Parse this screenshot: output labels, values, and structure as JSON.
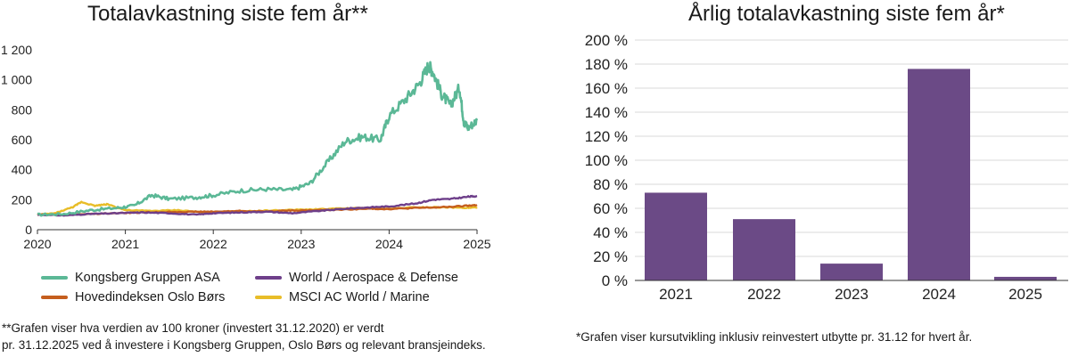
{
  "left_chart": {
    "title": "Totalavkastning siste fem år**",
    "y_ticks": [
      "0",
      "200",
      "400",
      "600",
      "800",
      "1 000",
      "1 200"
    ],
    "x_ticks": [
      "2020",
      "2021",
      "2022",
      "2023",
      "2024",
      "2025"
    ],
    "legend": [
      {
        "label": "Kongsberg Gruppen ASA",
        "color": "#5bb896"
      },
      {
        "label": "World / Aerospace & Defense",
        "color": "#6e3f8a"
      },
      {
        "label": "Hovedindeksen Oslo Børs",
        "color": "#c55e1e"
      },
      {
        "label": "MSCI AC World / Marine",
        "color": "#e8bd28"
      }
    ],
    "note_line1": "**Grafen viser hva verdien av 100 kroner (investert 31.12.2020) er verdt",
    "note_line2": "pr. 31.12.2025 ved å investere i Kongsberg Gruppen, Oslo Børs og relevant bransjeindeks."
  },
  "right_chart": {
    "title": "Årlig totalavkastning siste fem år*",
    "y_ticks": [
      "0 %",
      "20 %",
      "40 %",
      "60 %",
      "80 %",
      "100 %",
      "120 %",
      "140 %",
      "160 %",
      "180 %",
      "200 %"
    ],
    "note": "*Grafen viser kursutvikling inklusiv reinvestert utbytte pr. 31.12 for hvert år."
  },
  "chart_data": [
    {
      "type": "line",
      "title": "Totalavkastning siste fem år**",
      "xlabel": "",
      "ylabel": "",
      "xlim": [
        2020,
        2025
      ],
      "ylim": [
        0,
        1200
      ],
      "grid": false,
      "legend_position": "bottom",
      "series": [
        {
          "name": "Kongsberg Gruppen ASA",
          "color": "#5bb896",
          "x": [
            2020,
            2020.3,
            2020.6,
            2020.9,
            2021.1,
            2021.3,
            2021.5,
            2021.8,
            2022.0,
            2022.3,
            2022.6,
            2022.9,
            2023.1,
            2023.3,
            2023.5,
            2023.7,
            2023.9,
            2024.0,
            2024.2,
            2024.35,
            2024.45,
            2024.5,
            2024.6,
            2024.7,
            2024.8,
            2024.85,
            2024.9,
            2025.0
          ],
          "y": [
            100,
            105,
            130,
            145,
            160,
            230,
            205,
            215,
            230,
            260,
            270,
            265,
            310,
            450,
            590,
            620,
            600,
            760,
            880,
            980,
            1100,
            1050,
            900,
            830,
            950,
            720,
            680,
            730
          ]
        },
        {
          "name": "World / Aerospace & Defense",
          "color": "#6e3f8a",
          "x": [
            2020,
            2020.3,
            2020.6,
            2020.9,
            2021.2,
            2021.5,
            2021.8,
            2022.0,
            2022.3,
            2022.6,
            2022.9,
            2023.2,
            2023.5,
            2023.8,
            2024.0,
            2024.3,
            2024.5,
            2024.7,
            2024.9,
            2025.0
          ],
          "y": [
            100,
            95,
            105,
            110,
            115,
            110,
            100,
            110,
            115,
            120,
            110,
            125,
            140,
            150,
            155,
            175,
            200,
            205,
            220,
            225
          ]
        },
        {
          "name": "Hovedindeksen Oslo Børs",
          "color": "#c55e1e",
          "x": [
            2020,
            2020.3,
            2020.6,
            2020.9,
            2021.2,
            2021.5,
            2021.8,
            2022.0,
            2022.3,
            2022.6,
            2022.9,
            2023.2,
            2023.5,
            2023.8,
            2024.0,
            2024.3,
            2024.6,
            2024.9,
            2025.0
          ],
          "y": [
            100,
            100,
            105,
            110,
            115,
            118,
            120,
            120,
            125,
            122,
            128,
            130,
            135,
            140,
            138,
            145,
            150,
            160,
            165
          ]
        },
        {
          "name": "MSCI AC World / Marine",
          "color": "#e8bd28",
          "x": [
            2020,
            2020.2,
            2020.4,
            2020.5,
            2020.65,
            2020.8,
            2021.0,
            2021.3,
            2021.6,
            2021.9,
            2022.2,
            2022.5,
            2022.8,
            2023.1,
            2023.4,
            2023.7,
            2024.0,
            2024.3,
            2024.6,
            2024.9,
            2025.0
          ],
          "y": [
            100,
            110,
            150,
            185,
            160,
            170,
            130,
            125,
            130,
            115,
            120,
            125,
            130,
            135,
            140,
            145,
            140,
            150,
            150,
            145,
            150
          ]
        }
      ]
    },
    {
      "type": "bar",
      "title": "Årlig totalavkastning siste fem år*",
      "categories": [
        "2021",
        "2022",
        "2023",
        "2024",
        "2025"
      ],
      "values": [
        73,
        51,
        14,
        176,
        3
      ],
      "ylim": [
        0,
        200
      ],
      "color": "#6b4a86",
      "grid": true,
      "xlabel": "",
      "ylabel": ""
    }
  ]
}
